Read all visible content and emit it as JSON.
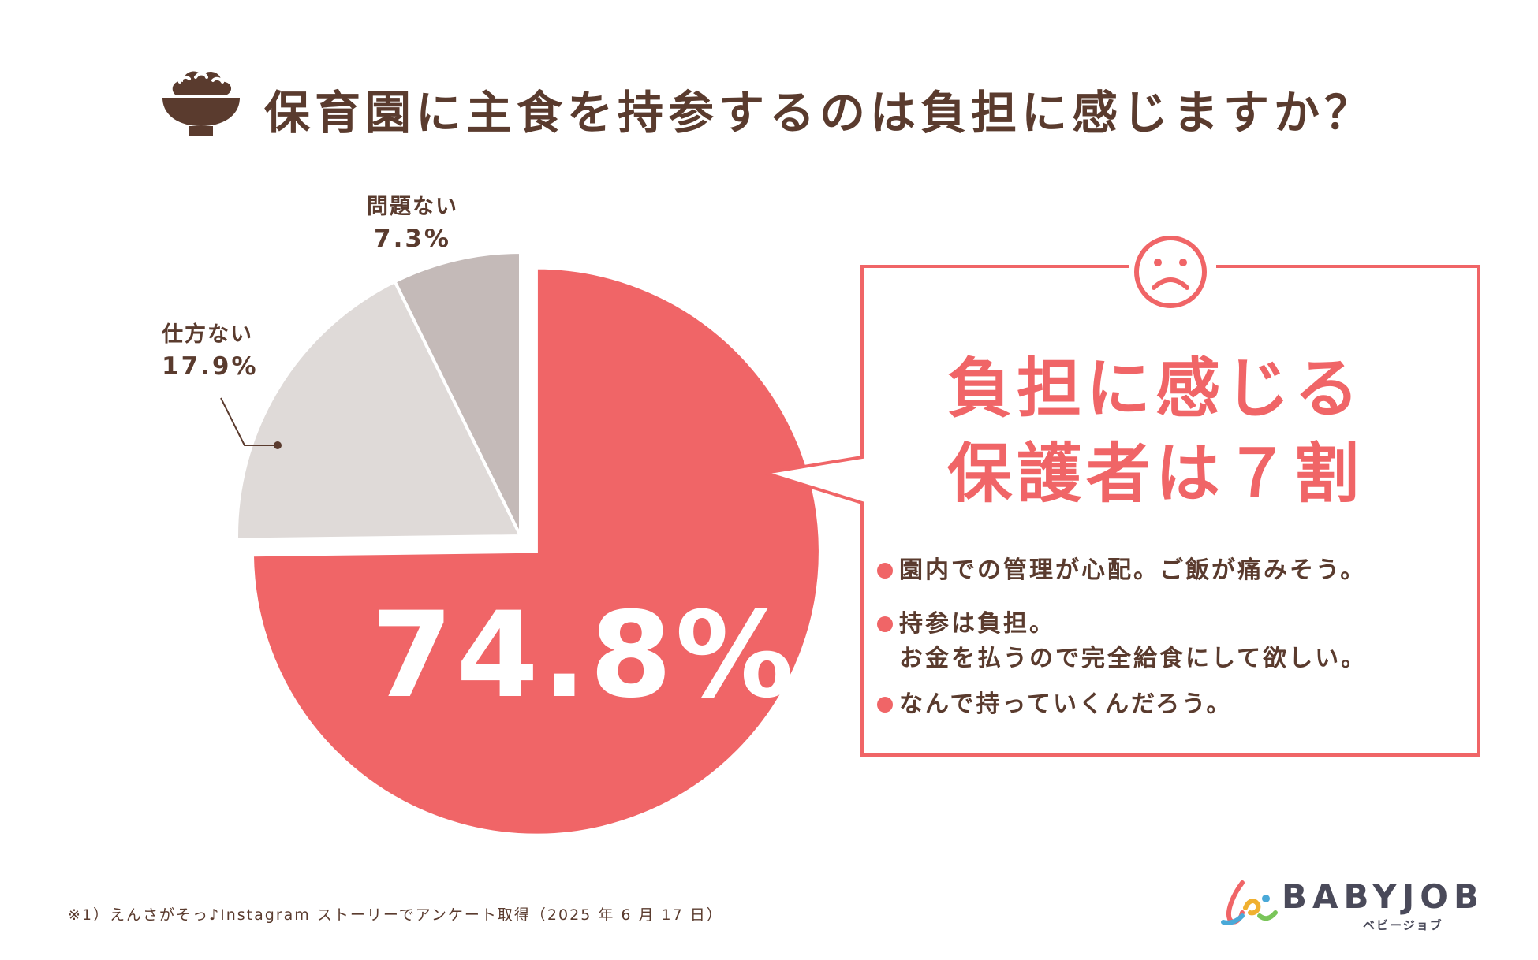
{
  "title": "保育園に主食を持参するのは負担に感じますか？",
  "colors": {
    "primary": "#f06567",
    "text": "#5a3b2e",
    "slice_light": "#dfdad8",
    "slice_mid": "#c4bab8"
  },
  "chart_data": {
    "type": "pie",
    "slices": [
      {
        "label": "",
        "value": 74.8,
        "value_text": "74.8%",
        "color": "#f06567",
        "exploded": true
      },
      {
        "label": "仕方ない",
        "value": 17.9,
        "value_text": "17.9%",
        "color": "#dfdad8"
      },
      {
        "label": "問題ない",
        "value": 7.3,
        "value_text": "7.3%",
        "color": "#c4bab8"
      }
    ]
  },
  "callout": {
    "icon": "sad-face-icon",
    "heading_line1": "負担に感じる",
    "heading_line2": "保護者は７割",
    "bullets": [
      "園内での管理が心配。ご飯が痛みそう。",
      "持参は負担。",
      "お金を払うので完全給食にして欲しい。",
      "なんで持っていくんだろう。"
    ]
  },
  "footnote": "※1）えんさがそっ♪Instagram ストーリーでアンケート取得（2025 年 6 月 17 日）",
  "brand": {
    "name": "BABYJOB",
    "sub": "ベビージョブ",
    "icon": "babyjob-logo-icon"
  }
}
